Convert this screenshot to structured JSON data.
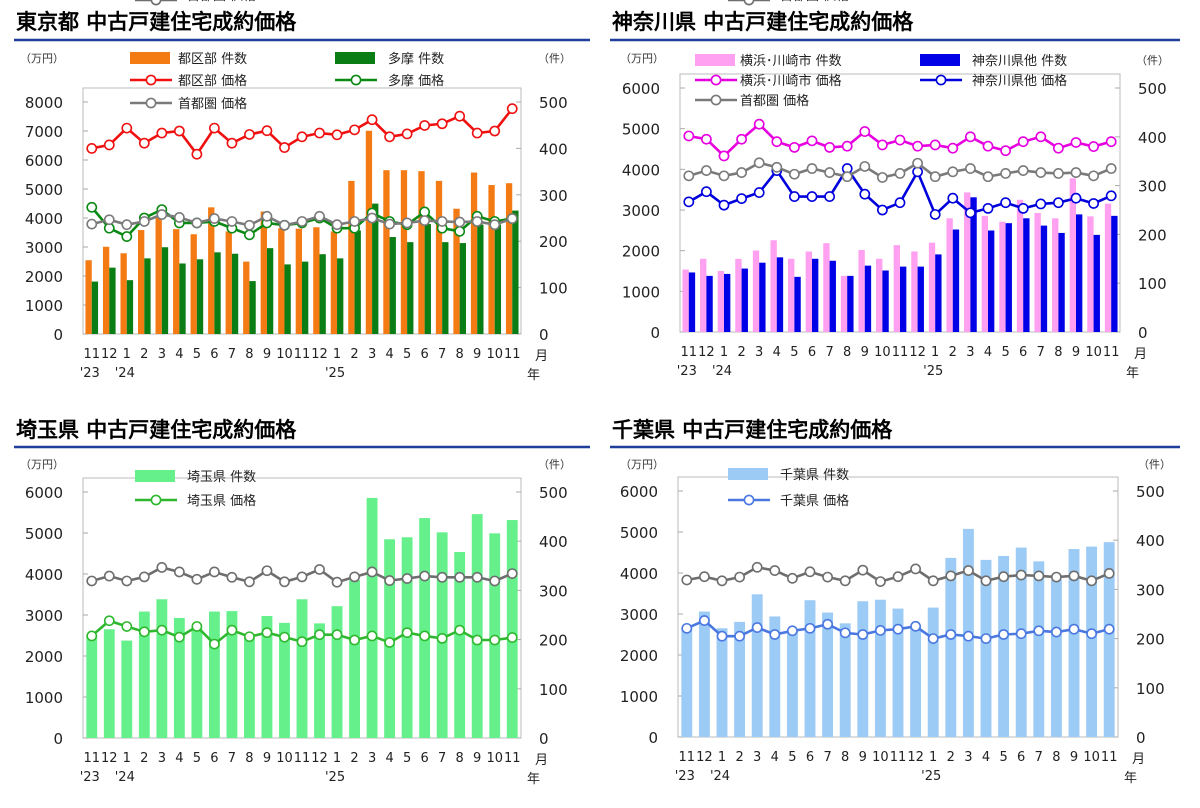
{
  "chart_data": [
    {
      "type": "bar+line",
      "title": "東京都 中古戸建住宅成約価格",
      "left_unit": "（万円）",
      "right_unit": "（件）",
      "month_axis_label": "月",
      "year_axis_label": "年",
      "categories": [
        "11",
        "12",
        "1",
        "2",
        "3",
        "4",
        "5",
        "6",
        "7",
        "8",
        "9",
        "10",
        "11",
        "12",
        "1",
        "2",
        "3",
        "4",
        "5",
        "6",
        "7",
        "8",
        "9",
        "10",
        "11"
      ],
      "year_labels": [
        "'23",
        "",
        "'24",
        "",
        "",
        "",
        "",
        "",
        "",
        "",
        "",
        "",
        "",
        "",
        "'25",
        "",
        "",
        "",
        "",
        "",
        "",
        "",
        "",
        "",
        ""
      ],
      "left_axis": {
        "ylim": [
          0,
          8000
        ],
        "ticks": [
          0,
          1000,
          2000,
          3000,
          4000,
          5000,
          6000,
          7000,
          8000
        ]
      },
      "right_axis": {
        "ylim": [
          0,
          500
        ],
        "ticks": [
          0,
          100,
          200,
          300,
          400,
          500
        ]
      },
      "grid": false,
      "legend": "top",
      "series": [
        {
          "name": "都区部 件数",
          "kind": "bar",
          "axis": "right",
          "color": "#f47a14",
          "values": [
            159,
            188,
            174,
            224,
            250,
            226,
            215,
            273,
            221,
            156,
            264,
            228,
            227,
            230,
            221,
            330,
            438,
            353,
            353,
            351,
            330,
            270,
            348,
            321,
            325
          ]
        },
        {
          "name": "多摩 件数",
          "kind": "bar",
          "axis": "right",
          "color": "#0a7d14",
          "values": [
            113,
            143,
            116,
            163,
            187,
            152,
            161,
            176,
            173,
            114,
            185,
            150,
            156,
            172,
            163,
            223,
            281,
            209,
            198,
            237,
            198,
            196,
            236,
            236,
            266
          ]
        },
        {
          "name": "都区部 価格",
          "kind": "line",
          "axis": "left",
          "color": "#f01010",
          "values": [
            6400,
            6520,
            7100,
            6580,
            6930,
            7000,
            6200,
            7100,
            6580,
            6880,
            7010,
            6430,
            6800,
            6930,
            6870,
            7040,
            7390,
            6800,
            6900,
            7190,
            7250,
            7510,
            6930,
            7000,
            7770
          ]
        },
        {
          "name": "多摩 価格",
          "kind": "line",
          "axis": "left",
          "color": "#0a8a14",
          "values": [
            4370,
            3650,
            3360,
            4000,
            4290,
            3830,
            3830,
            3880,
            3650,
            3420,
            3830,
            3750,
            3830,
            4000,
            3650,
            3650,
            4170,
            3880,
            3770,
            4210,
            3650,
            3540,
            4060,
            3880,
            3980
          ]
        },
        {
          "name": "首都圏 価格",
          "kind": "line",
          "axis": "left",
          "color": "#7a7a7a",
          "values": [
            3790,
            3940,
            3770,
            3880,
            4120,
            4020,
            3830,
            3980,
            3880,
            3750,
            4060,
            3750,
            3880,
            4060,
            3770,
            3880,
            4000,
            3790,
            3830,
            3910,
            3880,
            3860,
            3880,
            3770,
            3980
          ]
        }
      ]
    },
    {
      "type": "bar+line",
      "title": "神奈川県 中古戸建住宅成約価格",
      "left_unit": "（万円）",
      "right_unit": "（件）",
      "month_axis_label": "月",
      "year_axis_label": "年",
      "categories": [
        "11",
        "12",
        "1",
        "2",
        "3",
        "4",
        "5",
        "6",
        "7",
        "8",
        "9",
        "10",
        "11",
        "12",
        "1",
        "2",
        "3",
        "4",
        "5",
        "6",
        "7",
        "8",
        "9",
        "10",
        "11"
      ],
      "year_labels": [
        "'23",
        "",
        "'24",
        "",
        "",
        "",
        "",
        "",
        "",
        "",
        "",
        "",
        "",
        "",
        "'25",
        "",
        "",
        "",
        "",
        "",
        "",
        "",
        "",
        "",
        ""
      ],
      "left_axis": {
        "ylim": [
          0,
          6000
        ],
        "ticks": [
          0,
          1000,
          2000,
          3000,
          4000,
          5000,
          6000
        ]
      },
      "right_axis": {
        "ylim": [
          0,
          500
        ],
        "ticks": [
          0,
          100,
          200,
          300,
          400,
          500
        ]
      },
      "grid": false,
      "legend": "top",
      "series": [
        {
          "name": "横浜･川崎市 件数",
          "kind": "bar",
          "axis": "right",
          "color": "#ffa0f0",
          "values": [
            128,
            150,
            125,
            150,
            167,
            188,
            150,
            165,
            182,
            115,
            168,
            150,
            178,
            165,
            183,
            233,
            286,
            238,
            226,
            271,
            244,
            233,
            315,
            237,
            263
          ]
        },
        {
          "name": "神奈川県他 件数",
          "kind": "bar",
          "axis": "right",
          "color": "#0000e6",
          "values": [
            122,
            115,
            119,
            130,
            142,
            153,
            113,
            150,
            146,
            115,
            136,
            126,
            134,
            134,
            159,
            210,
            276,
            208,
            223,
            233,
            218,
            203,
            241,
            199,
            238
          ]
        },
        {
          "name": "横浜･川崎市 価格",
          "kind": "line",
          "axis": "left",
          "color": "#e600e0",
          "values": [
            4820,
            4740,
            4330,
            4740,
            5110,
            4680,
            4540,
            4700,
            4540,
            4570,
            4930,
            4600,
            4720,
            4570,
            4600,
            4520,
            4800,
            4570,
            4460,
            4680,
            4800,
            4520,
            4660,
            4560,
            4680
          ]
        },
        {
          "name": "神奈川県他 価格",
          "kind": "line",
          "axis": "left",
          "color": "#0000dc",
          "values": [
            3200,
            3450,
            3120,
            3280,
            3430,
            3970,
            3330,
            3330,
            3330,
            4020,
            3390,
            3000,
            3180,
            3940,
            2890,
            3290,
            2930,
            3040,
            3180,
            3040,
            3150,
            3180,
            3290,
            3160,
            3350
          ]
        },
        {
          "name": "首都圏 価格",
          "kind": "line",
          "axis": "left",
          "color": "#7a7a7a",
          "values": [
            3840,
            3970,
            3840,
            3920,
            4160,
            4050,
            3880,
            4020,
            3920,
            3820,
            4070,
            3800,
            3900,
            4150,
            3820,
            3940,
            4020,
            3820,
            3900,
            3970,
            3920,
            3900,
            3920,
            3840,
            4020
          ]
        }
      ]
    },
    {
      "type": "bar+line",
      "title": "埼玉県 中古戸建住宅成約価格",
      "left_unit": "（万円）",
      "right_unit": "（件）",
      "month_axis_label": "月",
      "year_axis_label": "年",
      "categories": [
        "11",
        "12",
        "1",
        "2",
        "3",
        "4",
        "5",
        "6",
        "7",
        "8",
        "9",
        "10",
        "11",
        "12",
        "1",
        "2",
        "3",
        "4",
        "5",
        "6",
        "7",
        "8",
        "9",
        "10",
        "11"
      ],
      "year_labels": [
        "'23",
        "",
        "'24",
        "",
        "",
        "",
        "",
        "",
        "",
        "",
        "",
        "",
        "",
        "",
        "'25",
        "",
        "",
        "",
        "",
        "",
        "",
        "",
        "",
        "",
        ""
      ],
      "left_axis": {
        "ylim": [
          0,
          6000
        ],
        "ticks": [
          0,
          1000,
          2000,
          3000,
          4000,
          5000,
          6000
        ]
      },
      "right_axis": {
        "ylim": [
          0,
          500
        ],
        "ticks": [
          0,
          100,
          200,
          300,
          400,
          500
        ]
      },
      "grid": false,
      "legend": "top",
      "series": [
        {
          "name": "埼玉県 件数",
          "kind": "bar",
          "axis": "right",
          "color": "#66f08c",
          "values": [
            209,
            221,
            198,
            257,
            282,
            244,
            225,
            257,
            258,
            206,
            248,
            234,
            282,
            233,
            268,
            321,
            488,
            404,
            408,
            447,
            418,
            378,
            455,
            416,
            443
          ]
        },
        {
          "name": "埼玉県 価格",
          "kind": "line",
          "axis": "left",
          "color": "#2fb82f",
          "values": [
            2490,
            2860,
            2720,
            2590,
            2630,
            2460,
            2720,
            2290,
            2630,
            2470,
            2570,
            2460,
            2350,
            2520,
            2520,
            2390,
            2490,
            2330,
            2570,
            2490,
            2430,
            2630,
            2390,
            2390,
            2450
          ]
        },
        {
          "name": "首都圏 価格",
          "kind": "line",
          "axis": "left",
          "color": "#6e6e6e",
          "values": [
            3830,
            3950,
            3830,
            3930,
            4160,
            4050,
            3870,
            4050,
            3920,
            3810,
            4080,
            3810,
            3930,
            4110,
            3800,
            3930,
            4050,
            3840,
            3890,
            3950,
            3920,
            3920,
            3920,
            3830,
            4010
          ]
        }
      ]
    },
    {
      "type": "bar+line",
      "title": "千葉県 中古戸建住宅成約価格",
      "left_unit": "（万円）",
      "right_unit": "（件）",
      "month_axis_label": "月",
      "year_axis_label": "年",
      "categories": [
        "11",
        "12",
        "1",
        "2",
        "3",
        "4",
        "5",
        "6",
        "7",
        "8",
        "9",
        "10",
        "11",
        "12",
        "1",
        "2",
        "3",
        "4",
        "5",
        "6",
        "7",
        "8",
        "9",
        "10",
        "11"
      ],
      "year_labels": [
        "'23",
        "",
        "'24",
        "",
        "",
        "",
        "",
        "",
        "",
        "",
        "",
        "",
        "",
        "",
        "'25",
        "",
        "",
        "",
        "",
        "",
        "",
        "",
        "",
        "",
        ""
      ],
      "left_axis": {
        "ylim": [
          0,
          6000
        ],
        "ticks": [
          0,
          1000,
          2000,
          3000,
          4000,
          5000,
          6000
        ]
      },
      "right_axis": {
        "ylim": [
          0,
          500
        ],
        "ticks": [
          0,
          100,
          200,
          300,
          400,
          500
        ]
      },
      "grid": false,
      "legend": "top",
      "series": [
        {
          "name": "千葉県 件数",
          "kind": "bar",
          "axis": "right",
          "color": "#9ccbf6",
          "values": [
            221,
            255,
            221,
            234,
            290,
            245,
            218,
            278,
            253,
            231,
            276,
            279,
            261,
            224,
            263,
            364,
            423,
            360,
            368,
            385,
            357,
            319,
            382,
            387,
            396
          ]
        },
        {
          "name": "千葉県 価格",
          "kind": "line",
          "axis": "left",
          "color": "#4a78e0",
          "values": [
            2650,
            2840,
            2460,
            2460,
            2670,
            2500,
            2590,
            2650,
            2750,
            2540,
            2500,
            2600,
            2630,
            2700,
            2400,
            2500,
            2460,
            2400,
            2500,
            2520,
            2590,
            2560,
            2630,
            2520,
            2630
          ]
        },
        {
          "name": "首都圏 価格",
          "kind": "line",
          "axis": "left",
          "color": "#6e6e6e",
          "values": [
            3830,
            3910,
            3810,
            3900,
            4140,
            4060,
            3870,
            4030,
            3900,
            3810,
            4070,
            3790,
            3910,
            4100,
            3810,
            3930,
            4060,
            3810,
            3910,
            3950,
            3930,
            3900,
            3930,
            3810,
            3990
          ]
        }
      ]
    }
  ]
}
